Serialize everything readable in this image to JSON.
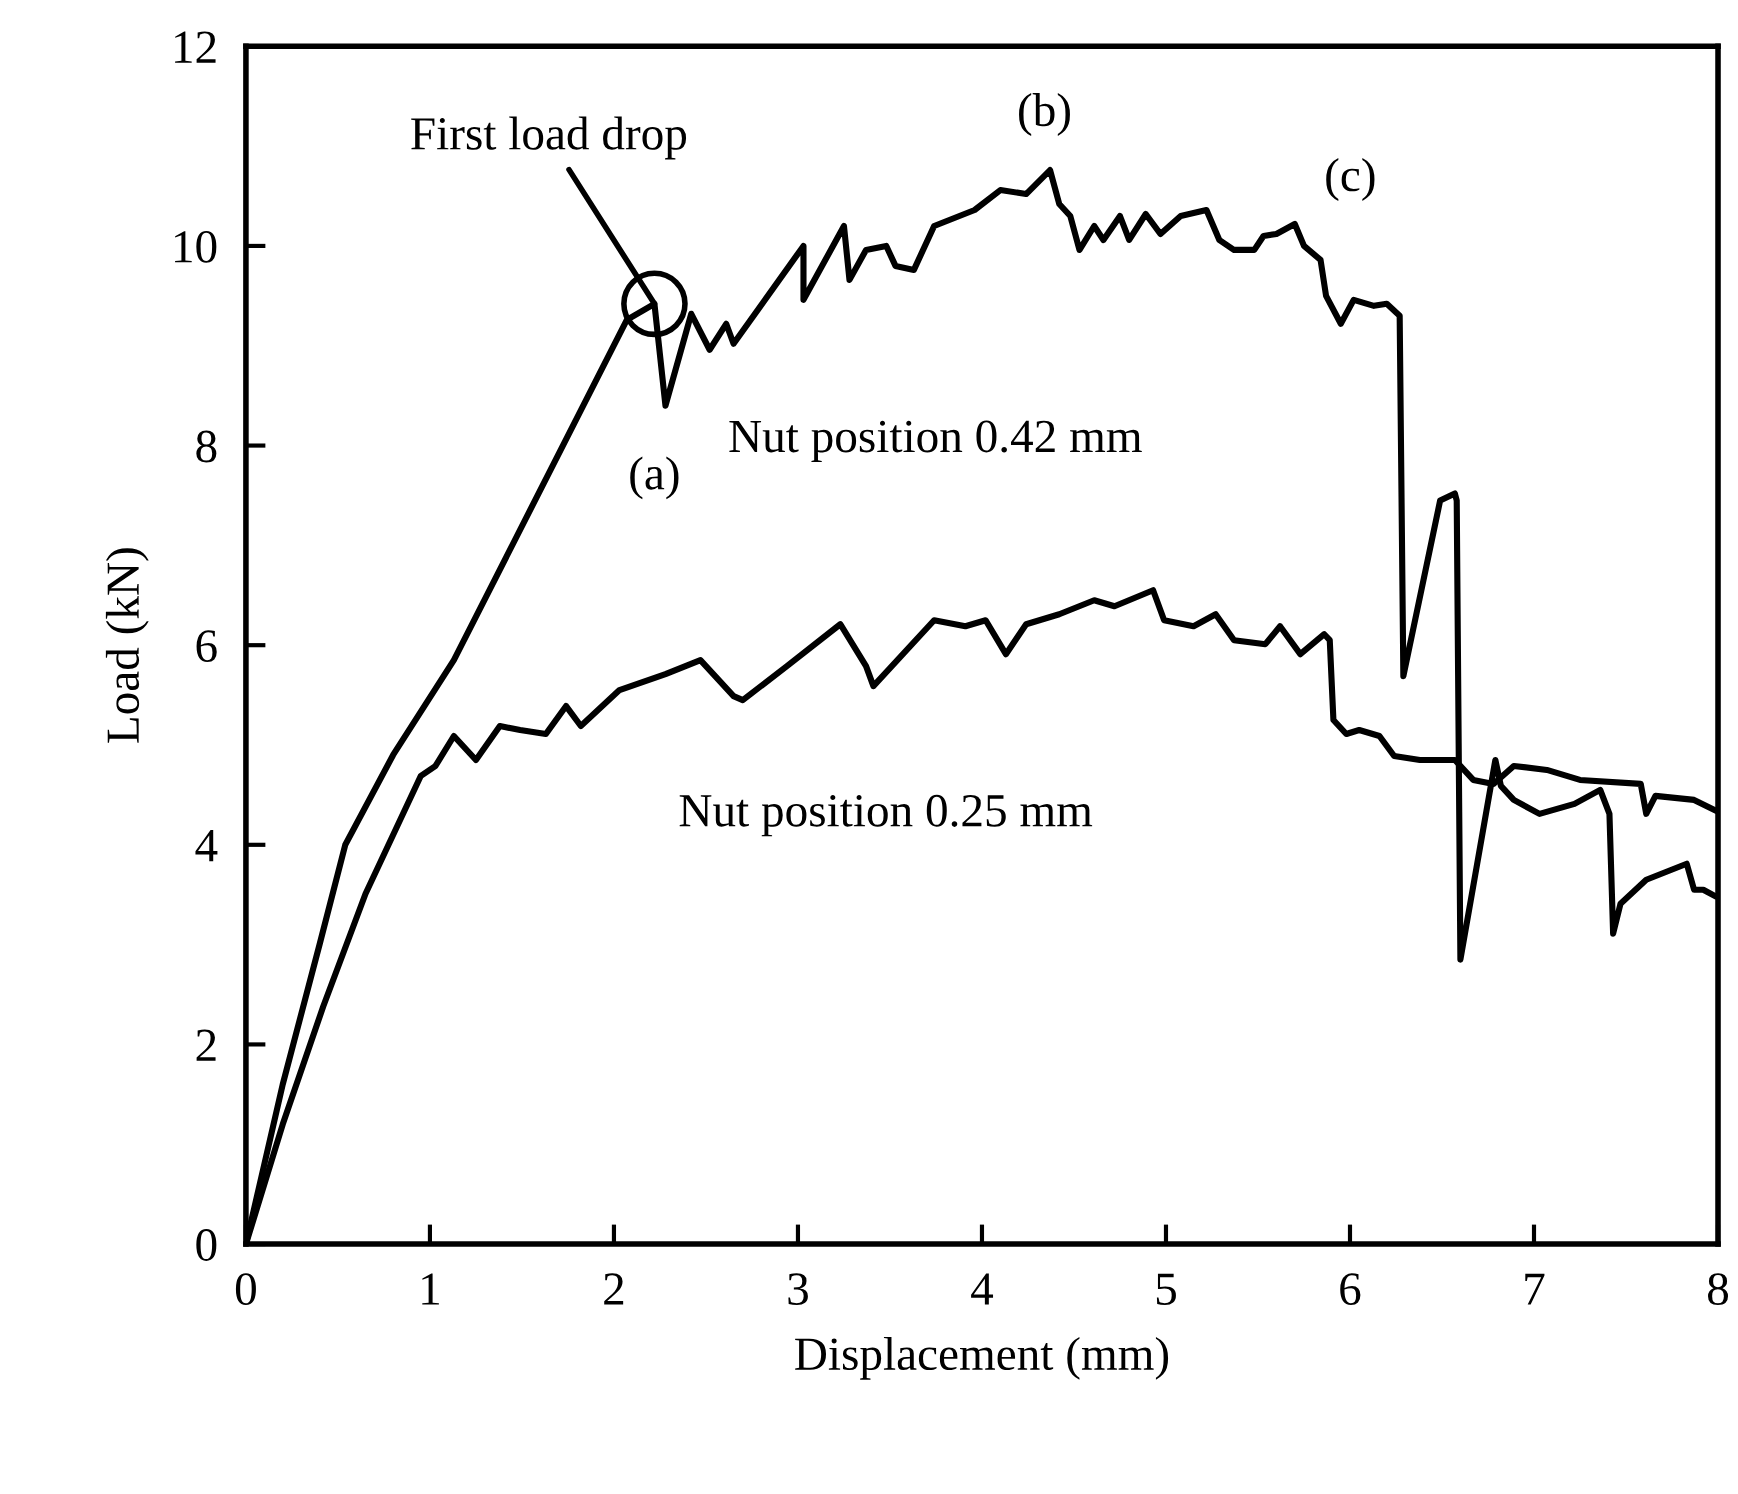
{
  "chart_data": {
    "type": "line",
    "xlabel": "Displacement (mm)",
    "ylabel": "Load (kN)",
    "xlim": [
      0,
      8
    ],
    "ylim": [
      0,
      12
    ],
    "xticks": [
      0,
      1,
      2,
      3,
      4,
      5,
      6,
      7,
      8
    ],
    "yticks": [
      0,
      2,
      4,
      6,
      8,
      10,
      12
    ],
    "grid": false,
    "legend": false,
    "marker": "none",
    "line_style": "solid",
    "series": [
      {
        "name": "Nut position 0.42 mm",
        "color": "#000000",
        "x": [
          0,
          0.2,
          0.4,
          0.54,
          0.8,
          1.13,
          2.07,
          2.22,
          2.28,
          2.42,
          2.52,
          2.61,
          2.65,
          3.03,
          3.03,
          3.25,
          3.28,
          3.37,
          3.48,
          3.53,
          3.63,
          3.74,
          3.96,
          4.1,
          4.24,
          4.37,
          4.42,
          4.48,
          4.53,
          4.61,
          4.66,
          4.75,
          4.8,
          4.89,
          4.97,
          5.08,
          5.22,
          5.29,
          5.37,
          5.48,
          5.53,
          5.6,
          5.7,
          5.75,
          5.84,
          5.87,
          5.95,
          6.02,
          6.13,
          6.2,
          6.27,
          6.29,
          6.49,
          6.57,
          6.58,
          6.6,
          6.79,
          6.82,
          6.89,
          7.03,
          7.22,
          7.36,
          7.41,
          7.43,
          7.47,
          7.61,
          7.83,
          7.87,
          7.92,
          7.98
        ],
        "values": [
          0,
          1.6,
          3.0,
          4.0,
          4.9,
          5.85,
          9.26,
          9.42,
          8.4,
          9.32,
          8.96,
          9.22,
          9.02,
          10.0,
          9.46,
          10.2,
          9.66,
          9.96,
          10.0,
          9.8,
          9.76,
          10.2,
          10.36,
          10.56,
          10.52,
          10.76,
          10.42,
          10.3,
          9.96,
          10.2,
          10.06,
          10.3,
          10.06,
          10.32,
          10.12,
          10.3,
          10.36,
          10.06,
          9.96,
          9.96,
          10.1,
          10.12,
          10.22,
          10.0,
          9.86,
          9.5,
          9.22,
          9.46,
          9.4,
          9.42,
          9.3,
          5.69,
          7.45,
          7.52,
          7.45,
          2.85,
          4.85,
          4.59,
          4.45,
          4.31,
          4.41,
          4.55,
          4.31,
          3.11,
          3.41,
          3.65,
          3.81,
          3.55,
          3.55,
          3.49
        ]
      },
      {
        "name": "Nut position 0.25 mm",
        "color": "#000000",
        "x": [
          0,
          0.2,
          0.42,
          0.65,
          0.95,
          1.03,
          1.13,
          1.25,
          1.38,
          1.49,
          1.63,
          1.74,
          1.82,
          2.03,
          2.28,
          2.47,
          2.65,
          2.7,
          2.94,
          3.23,
          3.37,
          3.41,
          3.74,
          3.91,
          4.02,
          4.13,
          4.24,
          4.42,
          4.61,
          4.72,
          4.93,
          4.99,
          5.15,
          5.27,
          5.37,
          5.54,
          5.62,
          5.73,
          5.86,
          5.89,
          5.91,
          5.98,
          6.05,
          6.16,
          6.24,
          6.38,
          6.57,
          6.67,
          6.78,
          6.89,
          7.07,
          7.25,
          7.58,
          7.61,
          7.66,
          7.87,
          7.98
        ],
        "values": [
          0,
          1.2,
          2.38,
          3.51,
          4.69,
          4.79,
          5.09,
          4.85,
          5.19,
          5.15,
          5.11,
          5.39,
          5.19,
          5.55,
          5.71,
          5.85,
          5.49,
          5.45,
          5.79,
          6.21,
          5.79,
          5.59,
          6.25,
          6.19,
          6.25,
          5.91,
          6.21,
          6.31,
          6.45,
          6.39,
          6.55,
          6.25,
          6.19,
          6.31,
          6.05,
          6.01,
          6.19,
          5.91,
          6.11,
          6.05,
          5.25,
          5.11,
          5.15,
          5.09,
          4.89,
          4.85,
          4.85,
          4.65,
          4.61,
          4.79,
          4.75,
          4.65,
          4.61,
          4.31,
          4.49,
          4.45,
          4.35
        ]
      }
    ],
    "annotations": [
      {
        "text": "First load drop",
        "x": 2.22,
        "y": 9.42
      },
      {
        "text": "(a)",
        "x": 2.28,
        "y": 8.4
      },
      {
        "text": "(b)",
        "x": 4.37,
        "y": 10.76
      },
      {
        "text": "(c)",
        "x": 5.7,
        "y": 10.22
      }
    ]
  }
}
